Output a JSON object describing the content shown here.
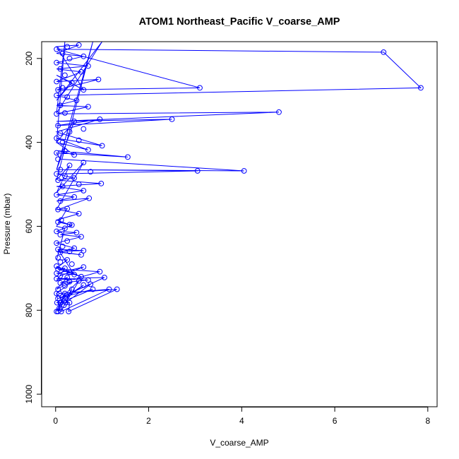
{
  "chart_data": {
    "type": "line",
    "title": "ATOM1 Northeast_Pacific V_coarse_AMP",
    "xlabel": "V_coarse_AMP",
    "ylabel": "Pressure (mbar)",
    "xlim": [
      -0.3,
      8.2
    ],
    "ylim": [
      1030,
      160
    ],
    "y_inverted": true,
    "x_ticks": [
      0,
      2,
      4,
      6,
      8
    ],
    "y_ticks": [
      200,
      400,
      600,
      800,
      1000
    ],
    "x_tick_labels": [
      "0",
      "2",
      "4",
      "6",
      "8"
    ],
    "y_tick_labels": [
      "200",
      "400",
      "600",
      "800",
      "1000"
    ],
    "grid": false,
    "legend": "none",
    "color": "#0000ff",
    "marker": "open-circle",
    "series": [
      {
        "name": "",
        "points": [
          [
            0.02,
            803
          ],
          [
            0.05,
            803
          ],
          [
            0.12,
            803
          ],
          [
            0.28,
            803
          ],
          [
            0.08,
            795
          ],
          [
            0.18,
            788
          ],
          [
            0.03,
            782
          ],
          [
            0.1,
            782
          ],
          [
            0.22,
            782
          ],
          [
            0.3,
            782
          ],
          [
            0.05,
            772
          ],
          [
            0.15,
            768
          ],
          [
            0.02,
            760
          ],
          [
            0.08,
            760
          ],
          [
            0.2,
            760
          ],
          [
            0.05,
            750
          ],
          [
            0.35,
            750
          ],
          [
            0.8,
            750
          ],
          [
            1.15,
            750
          ],
          [
            1.32,
            750
          ],
          [
            0.2,
            742
          ],
          [
            0.6,
            740
          ],
          [
            0.75,
            738
          ],
          [
            0.1,
            735
          ],
          [
            0.3,
            732
          ],
          [
            0.5,
            730
          ],
          [
            0.7,
            728
          ],
          [
            0.02,
            725
          ],
          [
            0.25,
            722
          ],
          [
            0.55,
            720
          ],
          [
            1.05,
            722
          ],
          [
            0.1,
            718
          ],
          [
            0.4,
            715
          ],
          [
            0.02,
            712
          ],
          [
            0.3,
            710
          ],
          [
            0.95,
            708
          ],
          [
            0.05,
            702
          ],
          [
            0.2,
            700
          ],
          [
            0.6,
            697
          ],
          [
            0.02,
            695
          ],
          [
            0.35,
            690
          ],
          [
            0.1,
            685
          ],
          [
            0.25,
            680
          ],
          [
            0.05,
            675
          ],
          [
            0.55,
            668
          ],
          [
            0.1,
            662
          ],
          [
            0.3,
            660
          ],
          [
            0.6,
            658
          ],
          [
            0.05,
            655
          ],
          [
            0.4,
            652
          ],
          [
            0.15,
            648
          ],
          [
            0.02,
            640
          ],
          [
            0.25,
            635
          ],
          [
            0.55,
            625
          ],
          [
            0.1,
            620
          ],
          [
            0.45,
            615
          ],
          [
            0.02,
            612
          ],
          [
            0.2,
            605
          ],
          [
            0.35,
            597
          ],
          [
            0.05,
            590
          ],
          [
            0.3,
            596
          ],
          [
            0.12,
            585
          ],
          [
            0.5,
            570
          ],
          [
            0.05,
            560
          ],
          [
            0.25,
            558
          ],
          [
            0.72,
            533
          ],
          [
            0.1,
            540
          ],
          [
            0.4,
            530
          ],
          [
            0.02,
            525
          ],
          [
            0.6,
            515
          ],
          [
            0.15,
            505
          ],
          [
            0.5,
            500
          ],
          [
            0.98,
            498
          ],
          [
            0.05,
            490
          ],
          [
            0.4,
            485
          ],
          [
            0.2,
            480
          ],
          [
            0.02,
            475
          ],
          [
            0.75,
            470
          ],
          [
            3.05,
            468
          ],
          [
            4.05,
            468
          ],
          [
            0.1,
            465
          ],
          [
            0.3,
            455
          ],
          [
            0.6,
            448
          ],
          [
            1.55,
            435
          ],
          [
            0.05,
            440
          ],
          [
            0.4,
            430
          ],
          [
            0.2,
            420
          ],
          [
            0.02,
            425
          ],
          [
            0.7,
            418
          ],
          [
            1.0,
            408
          ],
          [
            0.15,
            400
          ],
          [
            0.5,
            395
          ],
          [
            0.02,
            390
          ],
          [
            0.3,
            375
          ],
          [
            0.1,
            378
          ],
          [
            0.6,
            368
          ],
          [
            0.95,
            345
          ],
          [
            2.5,
            345
          ],
          [
            0.05,
            360
          ],
          [
            0.4,
            350
          ],
          [
            4.8,
            328
          ],
          [
            0.2,
            330
          ],
          [
            0.02,
            332
          ],
          [
            0.7,
            315
          ],
          [
            0.1,
            312
          ],
          [
            0.45,
            300
          ],
          [
            0.25,
            292
          ],
          [
            0.02,
            288
          ],
          [
            7.85,
            270
          ],
          [
            3.1,
            270
          ],
          [
            0.6,
            275
          ],
          [
            0.15,
            270
          ],
          [
            0.05,
            275
          ],
          [
            0.35,
            258
          ],
          [
            0.92,
            250
          ],
          [
            0.02,
            255
          ],
          [
            0.2,
            240
          ],
          [
            0.55,
            232
          ],
          [
            0.1,
            225
          ],
          [
            0.7,
            218
          ],
          [
            0.02,
            210
          ],
          [
            0.3,
            200
          ],
          [
            7.05,
            185
          ],
          [
            0.6,
            195
          ],
          [
            0.15,
            188
          ],
          [
            0.02,
            178
          ],
          [
            0.25,
            172
          ],
          [
            0.5,
            168
          ]
        ],
        "path": [
          [
            0.02,
            803
          ],
          [
            0.2,
            760
          ],
          [
            0.05,
            803
          ],
          [
            0.35,
            750
          ],
          [
            0.12,
            803
          ],
          [
            1.15,
            750
          ],
          [
            0.08,
            760
          ],
          [
            1.32,
            750
          ],
          [
            0.28,
            803
          ],
          [
            0.3,
            782
          ],
          [
            0.03,
            782
          ],
          [
            0.6,
            740
          ],
          [
            0.1,
            782
          ],
          [
            0.8,
            750
          ],
          [
            0.05,
            772
          ],
          [
            0.75,
            738
          ],
          [
            0.22,
            782
          ],
          [
            0.5,
            730
          ],
          [
            0.15,
            768
          ],
          [
            1.05,
            722
          ],
          [
            0.02,
            725
          ],
          [
            0.7,
            728
          ],
          [
            0.1,
            735
          ],
          [
            0.95,
            708
          ],
          [
            0.05,
            702
          ],
          [
            0.55,
            720
          ],
          [
            0.02,
            695
          ],
          [
            0.3,
            710
          ],
          [
            0.1,
            718
          ],
          [
            0.6,
            697
          ],
          [
            0.02,
            712
          ],
          [
            0.4,
            715
          ],
          [
            0.05,
            655
          ],
          [
            0.6,
            658
          ],
          [
            0.02,
            660
          ],
          [
            0.55,
            668
          ],
          [
            0.1,
            662
          ],
          [
            0.4,
            652
          ],
          [
            0.02,
            640
          ],
          [
            0.55,
            625
          ],
          [
            0.1,
            620
          ],
          [
            0.45,
            615
          ],
          [
            0.02,
            612
          ],
          [
            0.35,
            597
          ],
          [
            0.05,
            590
          ],
          [
            0.3,
            596
          ],
          [
            0.02,
            585
          ],
          [
            0.5,
            570
          ],
          [
            0.05,
            560
          ],
          [
            0.72,
            533
          ],
          [
            0.02,
            540
          ],
          [
            0.4,
            530
          ],
          [
            0.02,
            525
          ],
          [
            0.6,
            515
          ],
          [
            0.02,
            505
          ],
          [
            0.98,
            498
          ],
          [
            0.05,
            490
          ],
          [
            0.4,
            485
          ],
          [
            0.02,
            475
          ],
          [
            3.05,
            468
          ],
          [
            0.02,
            465
          ],
          [
            4.05,
            468
          ],
          [
            0.1,
            440
          ],
          [
            0.02,
            425
          ],
          [
            1.55,
            435
          ],
          [
            0.05,
            420
          ],
          [
            0.4,
            430
          ],
          [
            0.02,
            400
          ],
          [
            0.7,
            418
          ],
          [
            0.02,
            390
          ],
          [
            1.0,
            408
          ],
          [
            0.1,
            378
          ],
          [
            0.02,
            375
          ],
          [
            0.95,
            345
          ],
          [
            0.02,
            360
          ],
          [
            2.5,
            345
          ],
          [
            0.02,
            350
          ],
          [
            4.8,
            328
          ],
          [
            0.02,
            332
          ],
          [
            0.7,
            315
          ],
          [
            0.02,
            312
          ],
          [
            0.45,
            300
          ],
          [
            0.02,
            288
          ],
          [
            7.85,
            270
          ],
          [
            7.05,
            185
          ],
          [
            0.02,
            178
          ],
          [
            3.1,
            270
          ],
          [
            0.02,
            275
          ],
          [
            0.92,
            250
          ],
          [
            0.02,
            255
          ],
          [
            0.55,
            232
          ],
          [
            0.02,
            225
          ],
          [
            0.7,
            218
          ],
          [
            0.02,
            210
          ],
          [
            0.6,
            195
          ],
          [
            0.02,
            188
          ],
          [
            0.5,
            168
          ],
          [
            0.02,
            172
          ],
          [
            0.6,
            275
          ],
          [
            0.02,
            240
          ],
          [
            0.35,
            258
          ],
          [
            0.02,
            300
          ],
          [
            1.0,
            160
          ],
          [
            0.02,
            330
          ],
          [
            0.2,
            160
          ],
          [
            0.02,
            400
          ],
          [
            0.4,
            350
          ],
          [
            0.02,
            465
          ],
          [
            0.8,
            160
          ],
          [
            0.02,
            490
          ],
          [
            0.3,
            455
          ],
          [
            0.02,
            520
          ],
          [
            0.6,
            448
          ],
          [
            0.02,
            560
          ],
          [
            0.25,
            558
          ],
          [
            0.02,
            600
          ],
          [
            0.2,
            605
          ],
          [
            0.02,
            680
          ],
          [
            0.25,
            680
          ],
          [
            0.02,
            700
          ],
          [
            0.2,
            700
          ],
          [
            0.02,
            730
          ],
          [
            0.25,
            722
          ],
          [
            0.02,
            750
          ],
          [
            0.35,
            732
          ],
          [
            0.02,
            760
          ],
          [
            0.08,
            795
          ],
          [
            0.02,
            803
          ]
        ]
      }
    ]
  }
}
